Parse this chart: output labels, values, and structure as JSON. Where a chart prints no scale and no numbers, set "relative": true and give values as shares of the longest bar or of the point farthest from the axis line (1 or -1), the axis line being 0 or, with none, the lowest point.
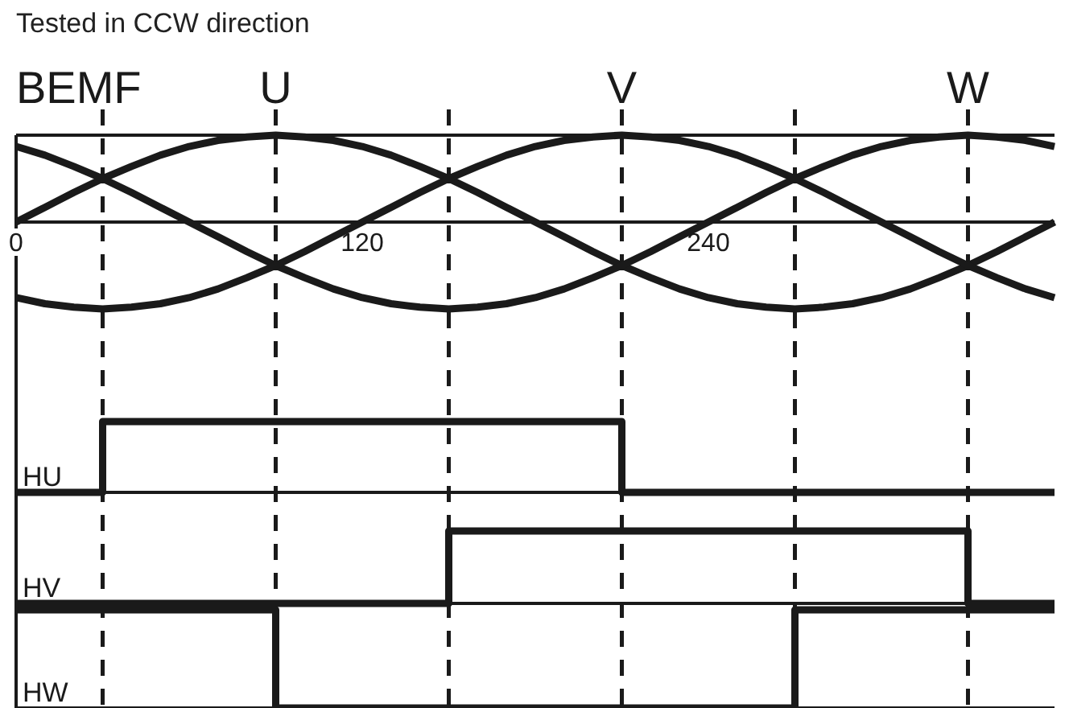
{
  "chart_data": [
    {
      "type": "line",
      "title": "Tested in CCW direction",
      "ylabel": "BEMF",
      "relative": true,
      "x": [
        0,
        10,
        20,
        30,
        40,
        50,
        60,
        70,
        80,
        90,
        100,
        110,
        120,
        130,
        140,
        150,
        160,
        170,
        180,
        190,
        200,
        210,
        220,
        230,
        240,
        250,
        260,
        270,
        280,
        290,
        300,
        310,
        320,
        330,
        340,
        350,
        360
      ],
      "xlim": [
        0,
        360
      ],
      "xticks": [
        0,
        120,
        240
      ],
      "series": [
        {
          "color": "#1a1a1a",
          "values": [
            0,
            0.17,
            0.34,
            0.5,
            0.64,
            0.77,
            0.87,
            0.94,
            0.98,
            1,
            0.98,
            0.94,
            0.87,
            0.77,
            0.64,
            0.5,
            0.34,
            0.17,
            0,
            -0.17,
            -0.34,
            -0.5,
            -0.64,
            -0.77,
            -0.87,
            -0.94,
            -0.98,
            -1,
            -0.98,
            -0.94,
            -0.87,
            -0.77,
            -0.64,
            -0.5,
            -0.34,
            -0.17,
            0
          ]
        },
        {
          "color": "#1a1a1a",
          "values": [
            0.87,
            0.77,
            0.64,
            0.5,
            0.34,
            0.17,
            0,
            -0.17,
            -0.34,
            -0.5,
            -0.64,
            -0.77,
            -0.87,
            -0.94,
            -0.98,
            -1,
            -0.98,
            -0.94,
            -0.87,
            -0.77,
            -0.64,
            -0.5,
            -0.34,
            -0.17,
            0,
            0.17,
            0.34,
            0.5,
            0.64,
            0.77,
            0.87,
            0.94,
            0.98,
            1,
            0.98,
            0.94,
            0.87
          ]
        },
        {
          "color": "#1a1a1a",
          "values": [
            -0.87,
            -0.94,
            -0.98,
            -1,
            -0.98,
            -0.94,
            -0.87,
            -0.77,
            -0.64,
            -0.5,
            -0.34,
            -0.17,
            0,
            0.17,
            0.34,
            0.5,
            0.64,
            0.77,
            0.87,
            0.94,
            0.98,
            1,
            0.98,
            0.94,
            0.87,
            0.77,
            0.64,
            0.5,
            0.34,
            0.17,
            0,
            -0.17,
            -0.34,
            -0.5,
            -0.64,
            -0.77,
            -0.87
          ]
        }
      ],
      "ref_lines": [
        {
          "axis": "x",
          "value": 30,
          "line_style": "dashed",
          "color": "#1a1a1a"
        },
        {
          "axis": "x",
          "value": 90,
          "label": "U",
          "line_style": "dashed",
          "color": "#1a1a1a"
        },
        {
          "axis": "x",
          "value": 150,
          "line_style": "dashed",
          "color": "#1a1a1a"
        },
        {
          "axis": "x",
          "value": 210,
          "label": "V",
          "line_style": "dashed",
          "color": "#1a1a1a"
        },
        {
          "axis": "x",
          "value": 270,
          "line_style": "dashed",
          "color": "#1a1a1a"
        },
        {
          "axis": "x",
          "value": 330,
          "label": "W",
          "line_style": "dashed",
          "color": "#1a1a1a"
        }
      ]
    },
    {
      "type": "line",
      "ylabel": "HU",
      "relative": true,
      "x": [
        0,
        30,
        30,
        210,
        210,
        360
      ],
      "xlim": [
        0,
        360
      ],
      "series": [
        {
          "color": "#1a1a1a",
          "values": [
            0,
            0,
            1,
            1,
            0,
            0
          ]
        }
      ]
    },
    {
      "type": "line",
      "ylabel": "HV",
      "relative": true,
      "x": [
        0,
        150,
        150,
        330,
        330,
        360
      ],
      "xlim": [
        0,
        360
      ],
      "series": [
        {
          "color": "#1a1a1a",
          "values": [
            0,
            0,
            1,
            1,
            0,
            0
          ]
        }
      ]
    },
    {
      "type": "line",
      "ylabel": "HW",
      "relative": true,
      "x": [
        0,
        90,
        90,
        270,
        270,
        360
      ],
      "xlim": [
        0,
        360
      ],
      "series": [
        {
          "color": "#1a1a1a",
          "values": [
            1,
            1,
            0,
            0,
            1,
            1
          ]
        }
      ]
    }
  ]
}
